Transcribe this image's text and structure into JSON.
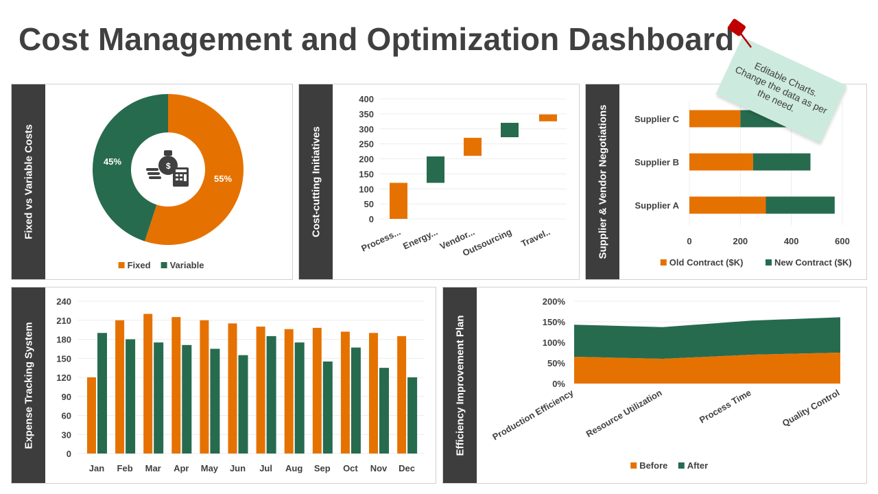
{
  "title": "Cost Management and Optimization Dashboard",
  "colors": {
    "orange": "#E57200",
    "green": "#276B4F",
    "panel_side": "#3d3d3d",
    "note": "#cdeade",
    "pin": "#c00000"
  },
  "note": {
    "text": "Editable Charts. Change the data as per the need."
  },
  "panels": {
    "fixed_variable": "Fixed vs Variable Costs",
    "cost_cutting": "Cost-cutting Initiatives",
    "supplier": "Supplier & Vendor Negotiations",
    "expense": "Expense Tracking System",
    "efficiency": "Efficiency Improvement Plan"
  },
  "chart_data": [
    {
      "type": "pie",
      "variant": "donut",
      "center_icon": "money-bag-calculator-icon",
      "categories": [
        "Fixed",
        "Variable"
      ],
      "values": [
        55,
        45
      ],
      "data_labels": [
        "55%",
        "45%"
      ],
      "legend": "bottom"
    },
    {
      "type": "bar",
      "variant": "waterfall",
      "categories": [
        "Process...",
        "Energy...",
        "Vendor...",
        "Outsourcing",
        "Travel.."
      ],
      "ranges": [
        [
          0,
          120
        ],
        [
          120,
          208
        ],
        [
          210,
          270
        ],
        [
          272,
          320
        ],
        [
          325,
          348
        ]
      ],
      "colors": [
        "orange",
        "green",
        "orange",
        "green",
        "orange"
      ],
      "ylim": [
        0,
        400
      ],
      "yticks": [
        "0",
        "50",
        "100",
        "150",
        "200",
        "250",
        "300",
        "350",
        "400"
      ],
      "grid": true
    },
    {
      "type": "bar",
      "orientation": "horizontal",
      "stacked": true,
      "categories": [
        "Supplier A",
        "Supplier B",
        "Supplier C"
      ],
      "series": [
        {
          "name": "Old Contract ($K)",
          "values": [
            300,
            250,
            200
          ]
        },
        {
          "name": "New Contract ($K)",
          "values": [
            270,
            225,
            200
          ]
        }
      ],
      "xlim": [
        0,
        600
      ],
      "xticks": [
        "0",
        "200",
        "400",
        "600"
      ],
      "grid": true,
      "legend": "bottom"
    },
    {
      "type": "bar",
      "categories": [
        "Jan",
        "Feb",
        "Mar",
        "Apr",
        "May",
        "Jun",
        "Jul",
        "Aug",
        "Sep",
        "Oct",
        "Nov",
        "Dec"
      ],
      "series": [
        {
          "values": [
            120,
            210,
            220,
            215,
            210,
            205,
            200,
            196,
            198,
            192,
            190,
            185
          ]
        },
        {
          "values": [
            190,
            180,
            175,
            171,
            165,
            155,
            185,
            175,
            145,
            167,
            135,
            120
          ]
        }
      ],
      "ylim": [
        0,
        240
      ],
      "yticks": [
        "0",
        "30",
        "60",
        "90",
        "120",
        "150",
        "180",
        "210",
        "240"
      ],
      "grid": true
    },
    {
      "type": "area",
      "stacked": true,
      "categories": [
        "Production Efficiency",
        "Resource Utilization",
        "Process Time",
        "Quality Control"
      ],
      "series": [
        {
          "name": "Before",
          "values": [
            65,
            60,
            70,
            75
          ]
        },
        {
          "name": "After",
          "values": [
            78,
            77,
            83,
            86
          ]
        }
      ],
      "ylim": [
        0,
        200
      ],
      "yticks": [
        "0%",
        "50%",
        "100%",
        "150%",
        "200%"
      ],
      "grid": true,
      "legend": "bottom"
    }
  ]
}
